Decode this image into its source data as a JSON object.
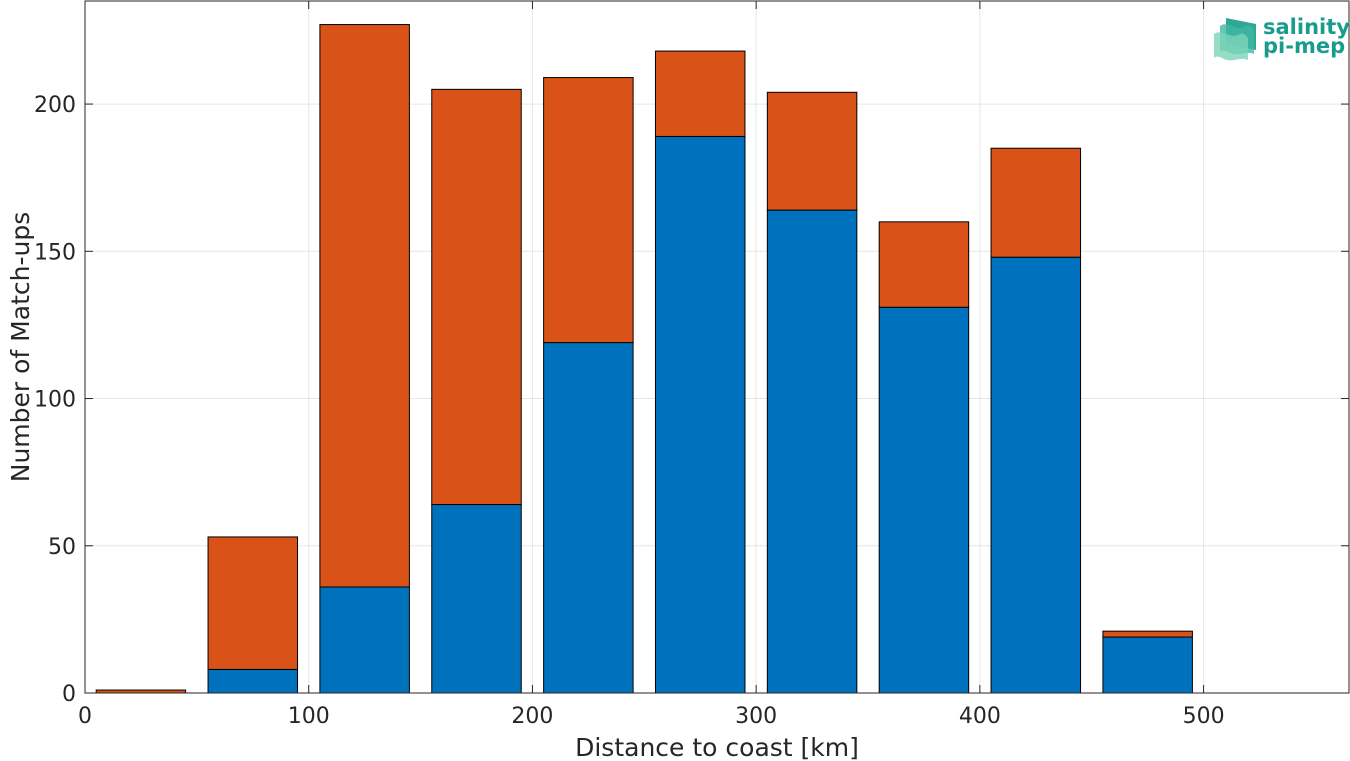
{
  "logo": {
    "line1": "salinity",
    "line2": "pi-mep"
  },
  "chart_data": {
    "type": "bar",
    "stacked": true,
    "title": "",
    "xlabel": "Distance to coast [km]",
    "ylabel": "Number of Match-ups",
    "x": [
      25,
      75,
      125,
      175,
      225,
      275,
      325,
      375,
      425,
      475,
      525
    ],
    "series": [
      {
        "color": "#0072BD",
        "values": [
          0,
          8,
          36,
          64,
          119,
          189,
          164,
          131,
          148,
          19,
          0
        ]
      },
      {
        "color": "#D95319",
        "values": [
          1,
          45,
          191,
          141,
          90,
          29,
          40,
          29,
          37,
          2,
          0
        ]
      }
    ],
    "xlim": [
      0,
      565
    ],
    "ylim": [
      0,
      235
    ],
    "xticks": [
      0,
      100,
      200,
      300,
      400,
      500
    ],
    "yticks": [
      0,
      50,
      100,
      150,
      200
    ],
    "bar_width_km": 40,
    "grid": true,
    "legend": "none"
  }
}
